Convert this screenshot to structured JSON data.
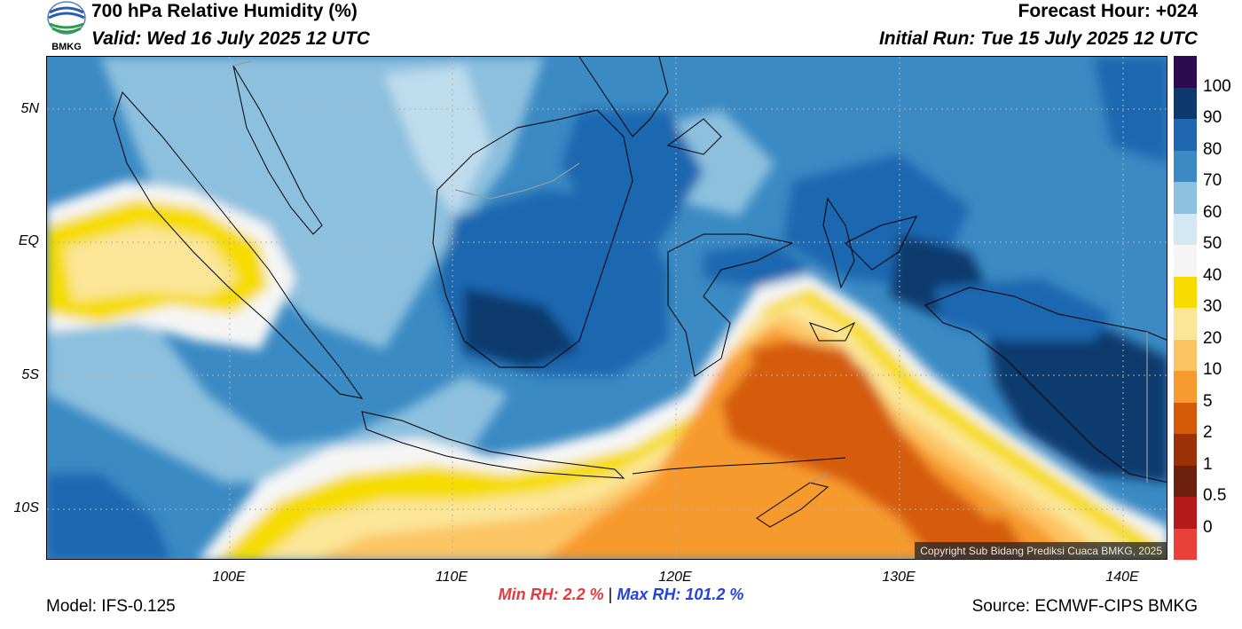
{
  "header": {
    "title": "700 hPa Relative Humidity (%)",
    "valid": "Valid: Wed 16 July 2025 12 UTC",
    "forecast_hour": "Forecast Hour: +024",
    "initial_run": "Initial Run: Tue 15 July 2025 12 UTC",
    "logo_text": "BMKG"
  },
  "map": {
    "lat_labels": [
      "5N",
      "EQ",
      "5S",
      "10S"
    ],
    "lon_labels": [
      "100E",
      "110E",
      "120E",
      "130E",
      "140E"
    ],
    "copyright": "Copyright Sub Bidang Prediksi Cuaca BMKG, 2025"
  },
  "colorbar": {
    "labels": [
      "100",
      "90",
      "80",
      "70",
      "60",
      "50",
      "40",
      "30",
      "20",
      "10",
      "5",
      "2",
      "1",
      "0.5",
      "0"
    ],
    "colors": [
      "#2e0b4f",
      "#0c3a6e",
      "#1f67b0",
      "#3b8ac4",
      "#8cc0de",
      "#d4e8f3",
      "#f5f5f5",
      "#f6dc00",
      "#fbe597",
      "#fcc564",
      "#f79a2f",
      "#d55b0a",
      "#9c3108",
      "#6b1f0c",
      "#b51a1a",
      "#e9403c"
    ]
  },
  "stats": {
    "min_label": "Min RH:",
    "min_value": "2.2 %",
    "separator": "|",
    "max_label": "Max RH:",
    "max_value": "101.2 %"
  },
  "footer": {
    "model": "Model: IFS-0.125",
    "source": "Source: ECMWF-CIPS BMKG"
  }
}
